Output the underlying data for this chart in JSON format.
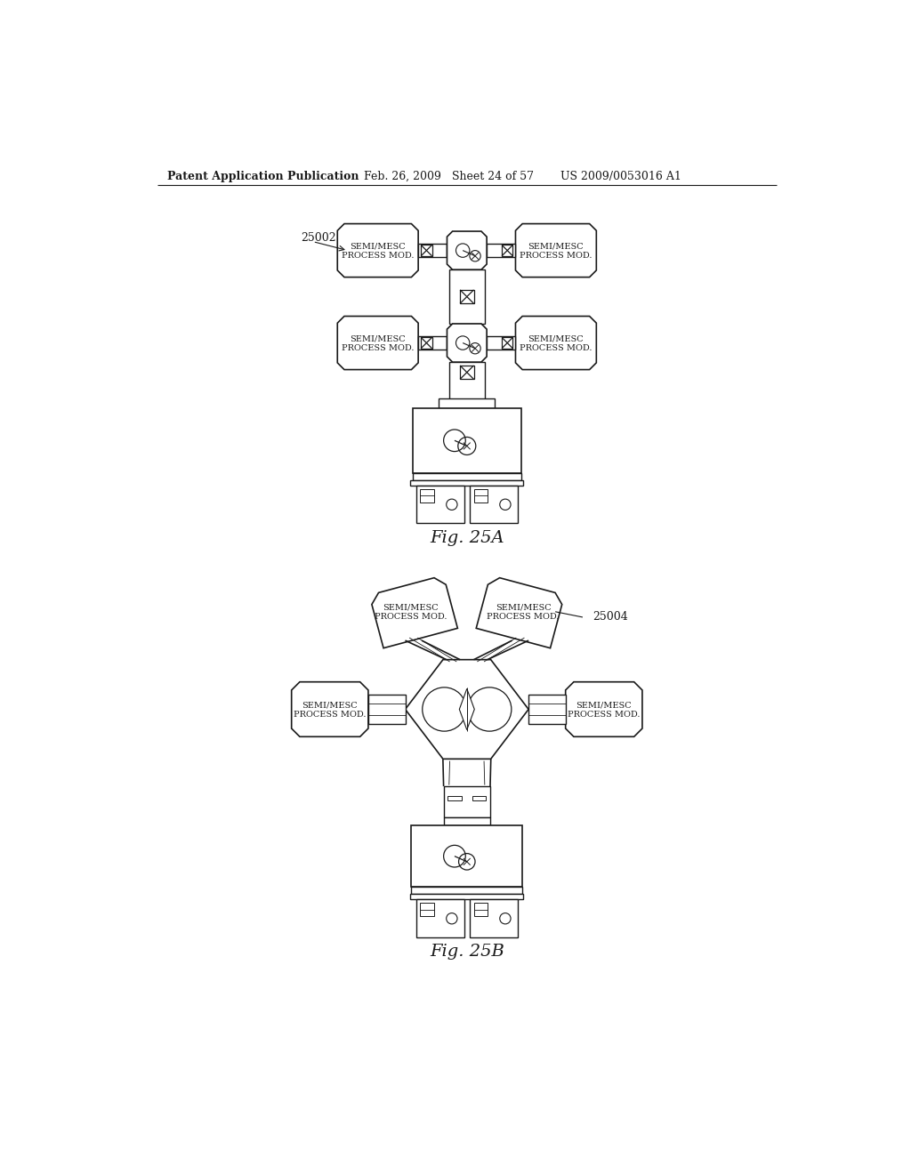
{
  "bg_color": "#ffffff",
  "line_color": "#1a1a1a",
  "header_text": "Patent Application Publication",
  "header_date": "Feb. 26, 2009",
  "header_sheet": "Sheet 24 of 57",
  "header_patent": "US 2009/0053016 A1",
  "fig_a_label": "Fig. 25A",
  "fig_b_label": "Fig. 25B",
  "label_25002": "25002",
  "label_25004": "25004"
}
